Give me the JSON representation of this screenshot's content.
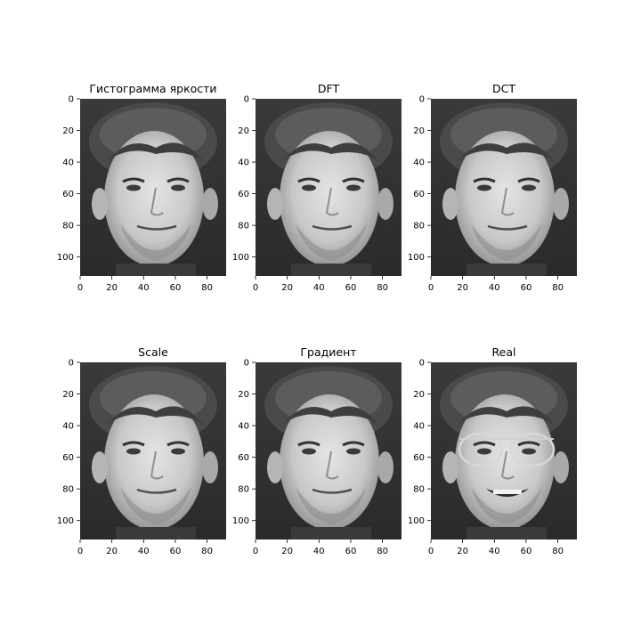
{
  "figure": {
    "axes_xticks": [
      "0",
      "20",
      "40",
      "60",
      "80"
    ],
    "axes_yticks": [
      "0",
      "20",
      "40",
      "60",
      "80",
      "100"
    ],
    "panels": [
      {
        "id": "hist",
        "title": "Гистограмма яркости",
        "variant": "neutral"
      },
      {
        "id": "dft",
        "title": "DFT",
        "variant": "neutral"
      },
      {
        "id": "dct",
        "title": "DCT",
        "variant": "neutral"
      },
      {
        "id": "scale",
        "title": "Scale",
        "variant": "neutral"
      },
      {
        "id": "gradient",
        "title": "Градиент",
        "variant": "neutral"
      },
      {
        "id": "real",
        "title": "Real",
        "variant": "glasses-smile"
      }
    ]
  }
}
